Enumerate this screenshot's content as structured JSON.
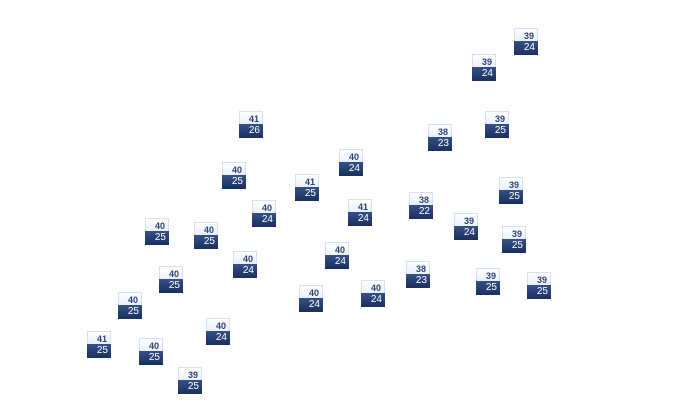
{
  "markers": [
    {
      "top": "39",
      "bottom": "24"
    },
    {
      "top": "39",
      "bottom": "24"
    },
    {
      "top": "41",
      "bottom": "26"
    },
    {
      "top": "39",
      "bottom": "25"
    },
    {
      "top": "38",
      "bottom": "23"
    },
    {
      "top": "40",
      "bottom": "24"
    },
    {
      "top": "40",
      "bottom": "25"
    },
    {
      "top": "41",
      "bottom": "25"
    },
    {
      "top": "39",
      "bottom": "25"
    },
    {
      "top": "38",
      "bottom": "22"
    },
    {
      "top": "40",
      "bottom": "24"
    },
    {
      "top": "41",
      "bottom": "24"
    },
    {
      "top": "39",
      "bottom": "24"
    },
    {
      "top": "40",
      "bottom": "25"
    },
    {
      "top": "40",
      "bottom": "25"
    },
    {
      "top": "39",
      "bottom": "25"
    },
    {
      "top": "40",
      "bottom": "24"
    },
    {
      "top": "40",
      "bottom": "24"
    },
    {
      "top": "38",
      "bottom": "23"
    },
    {
      "top": "40",
      "bottom": "25"
    },
    {
      "top": "39",
      "bottom": "25"
    },
    {
      "top": "39",
      "bottom": "25"
    },
    {
      "top": "40",
      "bottom": "24"
    },
    {
      "top": "40",
      "bottom": "25"
    },
    {
      "top": "40",
      "bottom": "24"
    },
    {
      "top": "40",
      "bottom": "24"
    },
    {
      "top": "41",
      "bottom": "25"
    },
    {
      "top": "40",
      "bottom": "25"
    },
    {
      "top": "39",
      "bottom": "25"
    }
  ],
  "colors": {
    "label_top_text": "#2c4578",
    "label_bottom_bg": "#1b2f5c",
    "label_top_bg": "#e9f0fb"
  }
}
